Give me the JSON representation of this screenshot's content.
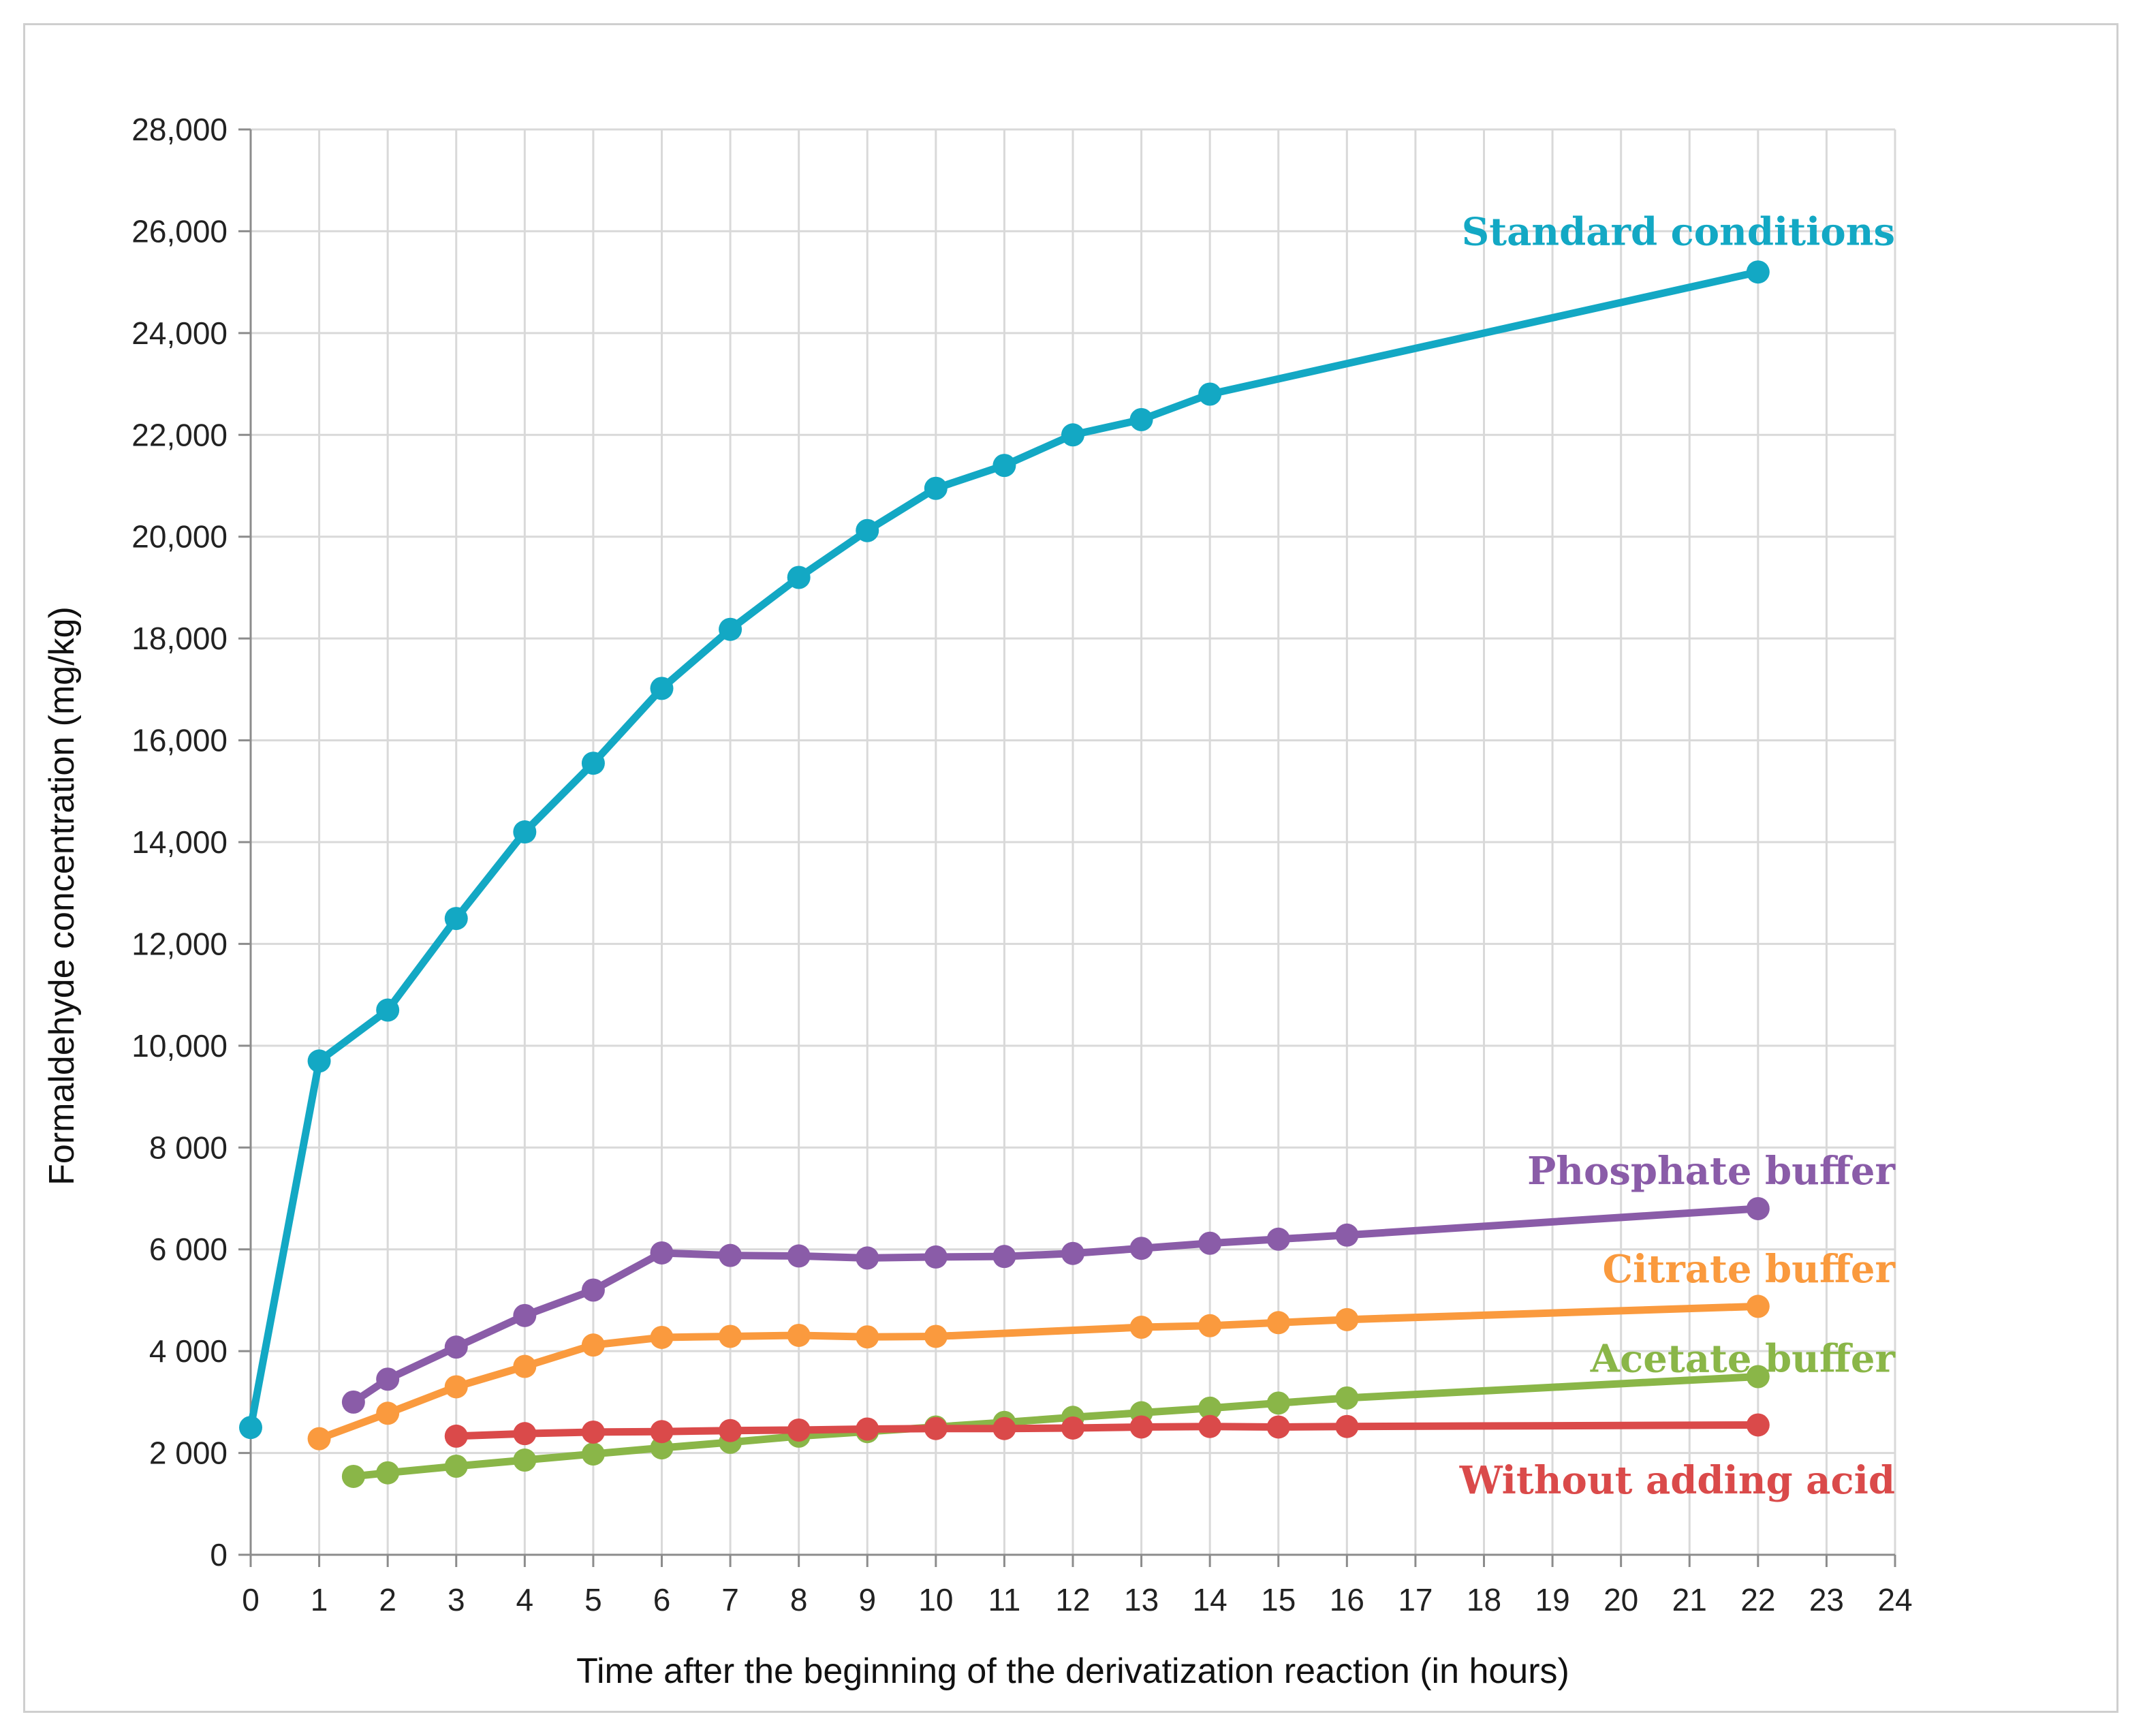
{
  "chart_data": {
    "type": "line",
    "title": "",
    "xlabel": "Time after the beginning of the derivatization reaction (in hours)",
    "ylabel": "Formaldehyde concentration (mg/kg)",
    "xlim": [
      0,
      24
    ],
    "ylim": [
      0,
      28000
    ],
    "grid": true,
    "x_ticks": [
      {
        "v": 0,
        "label": "0"
      },
      {
        "v": 1,
        "label": "1"
      },
      {
        "v": 2,
        "label": "2"
      },
      {
        "v": 3,
        "label": "3"
      },
      {
        "v": 4,
        "label": "4"
      },
      {
        "v": 5,
        "label": "5"
      },
      {
        "v": 6,
        "label": "6"
      },
      {
        "v": 7,
        "label": "7"
      },
      {
        "v": 8,
        "label": "8"
      },
      {
        "v": 9,
        "label": "9"
      },
      {
        "v": 10,
        "label": "10"
      },
      {
        "v": 11,
        "label": "11"
      },
      {
        "v": 12,
        "label": "12"
      },
      {
        "v": 13,
        "label": "13"
      },
      {
        "v": 14,
        "label": "14"
      },
      {
        "v": 15,
        "label": "15"
      },
      {
        "v": 16,
        "label": "16"
      },
      {
        "v": 17,
        "label": "17"
      },
      {
        "v": 18,
        "label": "18"
      },
      {
        "v": 19,
        "label": "19"
      },
      {
        "v": 20,
        "label": "20"
      },
      {
        "v": 21,
        "label": "21"
      },
      {
        "v": 22,
        "label": "22"
      },
      {
        "v": 23,
        "label": "23"
      },
      {
        "v": 24,
        "label": "24"
      }
    ],
    "y_ticks": [
      {
        "v": 0,
        "label": "0"
      },
      {
        "v": 2000,
        "label": "2 000"
      },
      {
        "v": 4000,
        "label": "4 000"
      },
      {
        "v": 6000,
        "label": "6 000"
      },
      {
        "v": 8000,
        "label": "8 000"
      },
      {
        "v": 10000,
        "label": "10,000"
      },
      {
        "v": 12000,
        "label": "12,000"
      },
      {
        "v": 14000,
        "label": "14,000"
      },
      {
        "v": 16000,
        "label": "16,000"
      },
      {
        "v": 18000,
        "label": "18,000"
      },
      {
        "v": 20000,
        "label": "20,000"
      },
      {
        "v": 22000,
        "label": "22,000"
      },
      {
        "v": 24000,
        "label": "24,000"
      },
      {
        "v": 26000,
        "label": "26,000"
      },
      {
        "v": 28000,
        "label": "28,000"
      }
    ],
    "series": [
      {
        "name": "Standard conditions",
        "color": "#13A8C4",
        "x": [
          0,
          1,
          2,
          3,
          4,
          5,
          6,
          7,
          8,
          9,
          10,
          11,
          12,
          13,
          14,
          22
        ],
        "y": [
          2500,
          9700,
          10700,
          12500,
          14200,
          15550,
          17020,
          18180,
          19200,
          20120,
          20950,
          21400,
          22000,
          22300,
          22800,
          25200
        ],
        "label_anchor": {
          "x": 22,
          "y": 26000
        }
      },
      {
        "name": "Phosphate buffer",
        "color": "#8A5CA8",
        "x": [
          1.5,
          2,
          3,
          4,
          5,
          6,
          7,
          8,
          9,
          10,
          11,
          12,
          13,
          14,
          15,
          16,
          22
        ],
        "y": [
          3000,
          3450,
          4080,
          4700,
          5200,
          5930,
          5880,
          5870,
          5830,
          5850,
          5860,
          5920,
          6020,
          6120,
          6200,
          6280,
          6800
        ],
        "label_anchor": {
          "x": 22,
          "y": 7550
        }
      },
      {
        "name": "Citrate buffer",
        "color": "#FA9A3E",
        "x": [
          1,
          2,
          3,
          4,
          5,
          6,
          7,
          8,
          9,
          10,
          13,
          14,
          15,
          16,
          22
        ],
        "y": [
          2280,
          2780,
          3300,
          3700,
          4120,
          4270,
          4290,
          4310,
          4280,
          4290,
          4470,
          4500,
          4560,
          4620,
          4880
        ],
        "label_anchor": {
          "x": 22,
          "y": 5620
        }
      },
      {
        "name": "Acetate buffer",
        "color": "#8AB648",
        "x": [
          1.5,
          2,
          3,
          4,
          5,
          6,
          7,
          8,
          9,
          10,
          11,
          12,
          13,
          14,
          15,
          16,
          22
        ],
        "y": [
          1540,
          1610,
          1740,
          1860,
          1980,
          2100,
          2210,
          2330,
          2420,
          2510,
          2600,
          2700,
          2790,
          2880,
          2980,
          3080,
          3500
        ],
        "label_anchor": {
          "x": 22,
          "y": 3860
        }
      },
      {
        "name": "Without adding acid",
        "color": "#DA4A4A",
        "x": [
          3,
          4,
          5,
          6,
          7,
          8,
          9,
          10,
          11,
          12,
          13,
          14,
          15,
          16,
          22
        ],
        "y": [
          2330,
          2380,
          2410,
          2420,
          2440,
          2450,
          2470,
          2480,
          2480,
          2490,
          2510,
          2520,
          2510,
          2520,
          2550
        ],
        "label_anchor": {
          "x": 22,
          "y": 1470
        }
      }
    ]
  }
}
